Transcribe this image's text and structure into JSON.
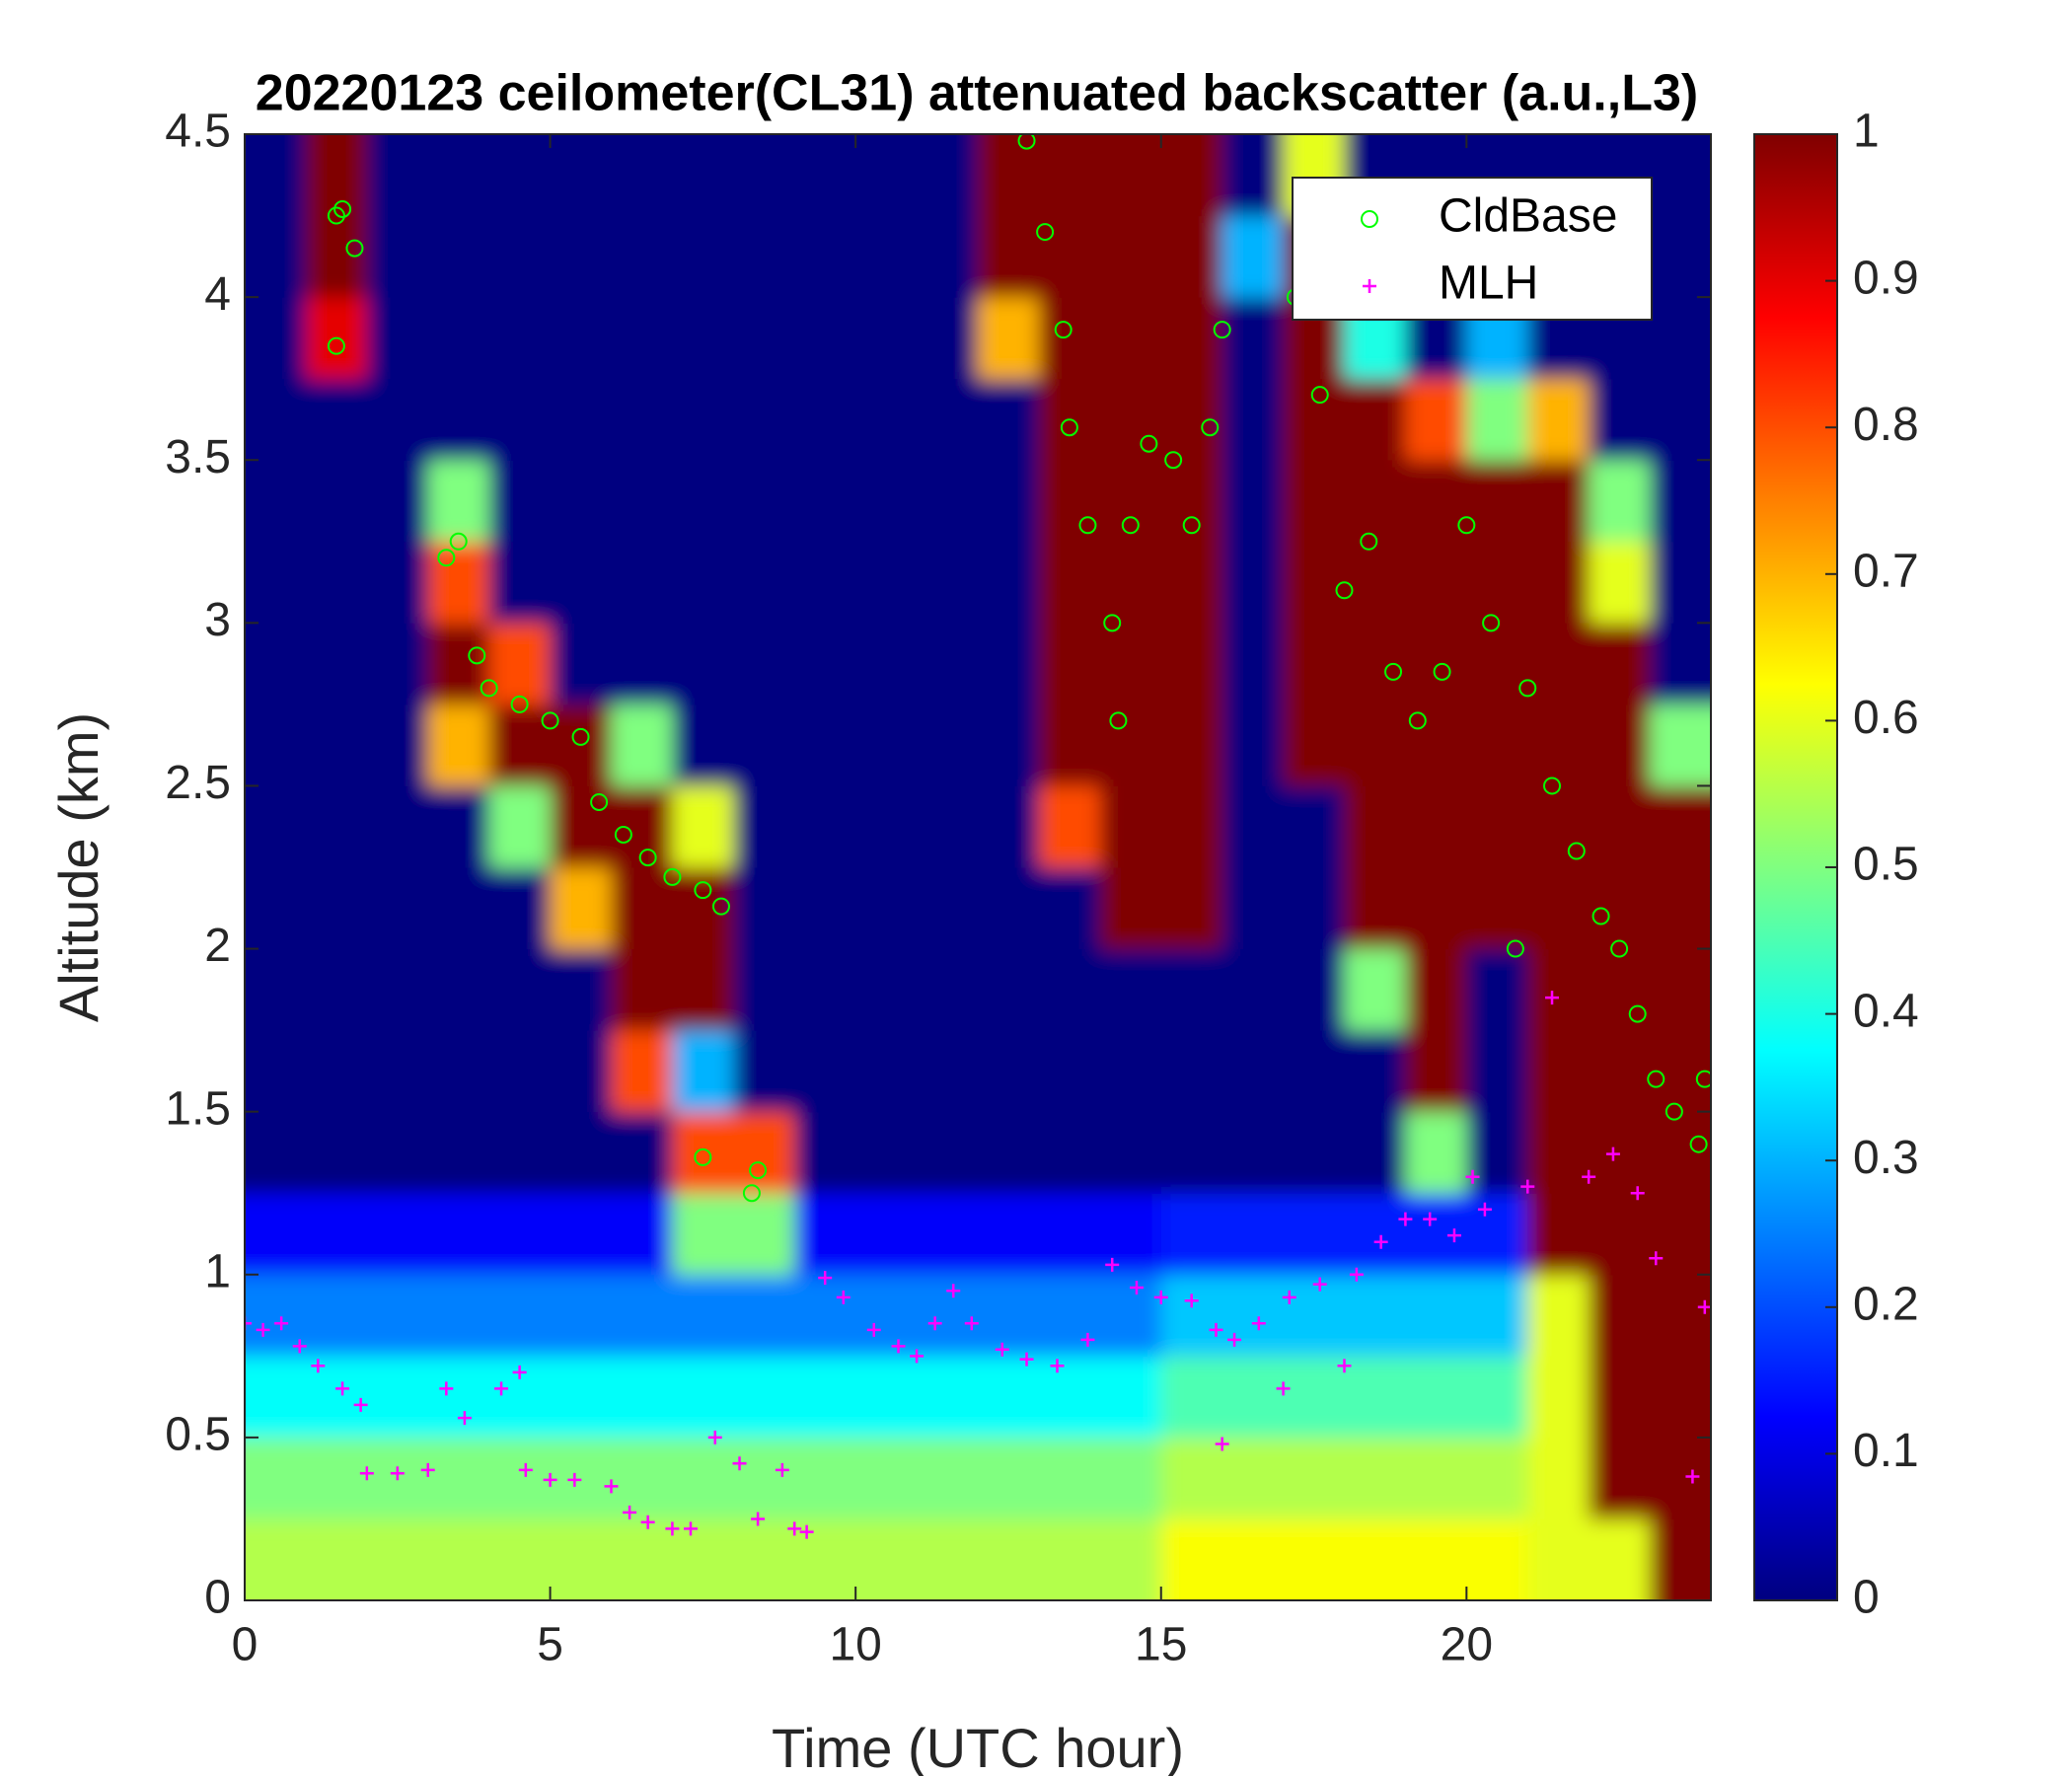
{
  "chart_data": {
    "type": "heatmap",
    "title": "20220123 ceilometer(CL31) attenuated backscatter (a.u.,L3)",
    "x_label": "Time (UTC hour)",
    "y_label": "Altitude (km)",
    "xlim": [
      0,
      24
    ],
    "ylim": [
      0,
      4.5
    ],
    "xticks": [
      0,
      5,
      10,
      15,
      20
    ],
    "yticks": [
      0,
      0.5,
      1,
      1.5,
      2,
      2.5,
      3,
      3.5,
      4,
      4.5
    ],
    "clim": [
      0,
      1
    ],
    "cticks": [
      0,
      0.1,
      0.2,
      0.3,
      0.4,
      0.5,
      0.6,
      0.7,
      0.8,
      0.9,
      1
    ],
    "colormap": "jet",
    "legend_position": "upper right",
    "x": [
      0.5,
      1.5,
      2.5,
      3.5,
      4.5,
      5.5,
      6.5,
      7.5,
      8.5,
      9.5,
      10.5,
      11.5,
      12.5,
      13.5,
      14.5,
      15.5,
      16.5,
      17.5,
      18.5,
      19.5,
      20.5,
      21.5,
      22.5,
      23.5
    ],
    "y": [
      0.125,
      0.375,
      0.625,
      0.875,
      1.125,
      1.375,
      1.625,
      1.875,
      2.125,
      2.375,
      2.625,
      2.875,
      3.125,
      3.375,
      3.625,
      3.875,
      4.125,
      4.375
    ],
    "z": [
      [
        0.55,
        0.55,
        0.55,
        0.55,
        0.55,
        0.55,
        0.55,
        0.55,
        0.55,
        0.55,
        0.55,
        0.55,
        0.55,
        0.55,
        0.55,
        0.62,
        0.62,
        0.62,
        0.62,
        0.62,
        0.62,
        0.6,
        0.6,
        1
      ],
      [
        0.5,
        0.5,
        0.5,
        0.5,
        0.5,
        0.5,
        0.5,
        0.5,
        0.5,
        0.5,
        0.5,
        0.5,
        0.5,
        0.5,
        0.5,
        0.55,
        0.55,
        0.55,
        0.55,
        0.55,
        0.55,
        0.6,
        1,
        1
      ],
      [
        0.38,
        0.38,
        0.38,
        0.38,
        0.38,
        0.38,
        0.38,
        0.38,
        0.38,
        0.38,
        0.38,
        0.38,
        0.38,
        0.38,
        0.38,
        0.45,
        0.45,
        0.45,
        0.45,
        0.45,
        0.45,
        0.6,
        1,
        1
      ],
      [
        0.25,
        0.25,
        0.25,
        0.25,
        0.25,
        0.25,
        0.25,
        0.25,
        0.25,
        0.25,
        0.25,
        0.25,
        0.25,
        0.25,
        0.25,
        0.32,
        0.32,
        0.32,
        0.32,
        0.32,
        0.32,
        0.6,
        1,
        1
      ],
      [
        0.12,
        0.12,
        0.12,
        0.12,
        0.12,
        0.12,
        0.12,
        0.5,
        0.5,
        0.12,
        0.12,
        0.12,
        0.12,
        0.12,
        0.12,
        0.15,
        0.15,
        0.15,
        0.15,
        0.15,
        0.15,
        1,
        1,
        1
      ],
      [
        0,
        0,
        0,
        0,
        0,
        0,
        0,
        0.8,
        0.8,
        0,
        0,
        0,
        0,
        0,
        0,
        0,
        0,
        0,
        0,
        0.5,
        0,
        1,
        1,
        1
      ],
      [
        0,
        0,
        0,
        0,
        0,
        0,
        0.8,
        0.3,
        0,
        0,
        0,
        0,
        0,
        0,
        0,
        0,
        0,
        0,
        0,
        1,
        0,
        1,
        1,
        1
      ],
      [
        0,
        0,
        0,
        0,
        0,
        0,
        1,
        1,
        0,
        0,
        0,
        0,
        0,
        0,
        0,
        0,
        0,
        0,
        0.5,
        1,
        0,
        1,
        1,
        1
      ],
      [
        0,
        0,
        0,
        0,
        0,
        0.7,
        1,
        1,
        0,
        0,
        0,
        0,
        0,
        0,
        1,
        1,
        0,
        0,
        1,
        1,
        1,
        1,
        1,
        1
      ],
      [
        0,
        0,
        0,
        0,
        0.5,
        1,
        1,
        0.6,
        0,
        0,
        0,
        0,
        0,
        0.8,
        1,
        1,
        0,
        0,
        1,
        1,
        1,
        1,
        1,
        1
      ],
      [
        0,
        0,
        0,
        0.7,
        1,
        1,
        0.5,
        0,
        0,
        0,
        0,
        0,
        0,
        1,
        1,
        1,
        0,
        1,
        1,
        1,
        1,
        1,
        1,
        0.5
      ],
      [
        0,
        0,
        0,
        1,
        0.8,
        0,
        0,
        0,
        0,
        0,
        0,
        0,
        0,
        1,
        1,
        1,
        0,
        1,
        1,
        1,
        1,
        1,
        1,
        0
      ],
      [
        0,
        0,
        0,
        0.8,
        0,
        0,
        0,
        0,
        0,
        0,
        0,
        0,
        0,
        1,
        1,
        1,
        0,
        1,
        1,
        1,
        1,
        1,
        0.6,
        0
      ],
      [
        0,
        0,
        0,
        0.5,
        0,
        0,
        0,
        0,
        0,
        0,
        0,
        0,
        0,
        1,
        1,
        1,
        0,
        1,
        1,
        1,
        1,
        1,
        0.5,
        0
      ],
      [
        0,
        0,
        0,
        0,
        0,
        0,
        0,
        0,
        0,
        0,
        0,
        0,
        0,
        1,
        1,
        1,
        0,
        1,
        1,
        0.8,
        0.5,
        0.7,
        0,
        0
      ],
      [
        0,
        0.9,
        0,
        0,
        0,
        0,
        0,
        0,
        0,
        0,
        0,
        0,
        0.7,
        1,
        1,
        1,
        0,
        1,
        0.4,
        0,
        0.3,
        0,
        0,
        0
      ],
      [
        0,
        1,
        0,
        0,
        0,
        0,
        0,
        0,
        0,
        0,
        0,
        0,
        1,
        1,
        1,
        1,
        0.3,
        1,
        0,
        0,
        0,
        0,
        0,
        0
      ],
      [
        0,
        1,
        0,
        0,
        0,
        0,
        0,
        0,
        0,
        0,
        0,
        0,
        1,
        1,
        1,
        1,
        0,
        0.6,
        0,
        0,
        0,
        0,
        0,
        0
      ]
    ],
    "series": [
      {
        "name": "CldBase",
        "color": "#00ff00",
        "marker": "o",
        "x": [
          1.5,
          1.6,
          1.8,
          1.5,
          3.3,
          3.5,
          3.8,
          4.0,
          4.5,
          5.0,
          5.5,
          5.8,
          6.2,
          6.6,
          7.0,
          7.5,
          7.8,
          7.5,
          8.3,
          8.4,
          12.8,
          13.1,
          13.4,
          13.5,
          13.8,
          14.2,
          14.3,
          14.5,
          14.8,
          15.2,
          15.5,
          15.8,
          16.0,
          17.2,
          17.6,
          18.0,
          18.4,
          18.8,
          19.2,
          19.6,
          20.0,
          20.4,
          20.8,
          21.0,
          21.4,
          21.8,
          22.2,
          22.5,
          22.8,
          23.1,
          23.4,
          23.8,
          23.9
        ],
        "values": [
          4.25,
          4.27,
          4.15,
          3.85,
          3.2,
          3.25,
          2.9,
          2.8,
          2.75,
          2.7,
          2.65,
          2.45,
          2.35,
          2.28,
          2.22,
          2.18,
          2.13,
          1.36,
          1.25,
          1.32,
          4.48,
          4.2,
          3.9,
          3.6,
          3.3,
          3.0,
          2.7,
          3.3,
          3.55,
          3.5,
          3.3,
          3.6,
          3.9,
          4.0,
          3.7,
          3.1,
          3.25,
          2.85,
          2.7,
          2.85,
          3.3,
          3.0,
          2.0,
          2.8,
          2.5,
          2.3,
          2.1,
          2.0,
          1.8,
          1.6,
          1.5,
          1.4,
          1.6
        ]
      },
      {
        "name": "MLH",
        "color": "#ff00ff",
        "marker": "+",
        "x": [
          0,
          0.3,
          0.6,
          0.9,
          1.2,
          1.6,
          1.9,
          2.0,
          2.5,
          3.0,
          3.3,
          3.6,
          4.2,
          4.5,
          4.6,
          5.0,
          5.4,
          6.0,
          6.3,
          6.6,
          7.0,
          7.3,
          7.7,
          8.1,
          8.4,
          8.8,
          9.0,
          9.2,
          9.5,
          9.8,
          10.3,
          10.7,
          11.0,
          11.3,
          11.6,
          11.9,
          12.4,
          12.8,
          13.3,
          13.8,
          14.2,
          14.6,
          15.0,
          15.5,
          15.9,
          16.2,
          16.6,
          17.1,
          17.6,
          18.0,
          18.2,
          18.6,
          19.0,
          19.4,
          19.8,
          20.1,
          20.3,
          21.0,
          21.4,
          22.0,
          22.4,
          22.8,
          23.1,
          23.7,
          23.9,
          16.0,
          17.0
        ],
        "values": [
          0.85,
          0.83,
          0.85,
          0.78,
          0.72,
          0.65,
          0.6,
          0.39,
          0.39,
          0.4,
          0.65,
          0.56,
          0.65,
          0.7,
          0.4,
          0.37,
          0.37,
          0.35,
          0.27,
          0.24,
          0.22,
          0.22,
          0.5,
          0.42,
          0.25,
          0.4,
          0.22,
          0.21,
          0.99,
          0.93,
          0.83,
          0.78,
          0.75,
          0.85,
          0.95,
          0.85,
          0.77,
          0.74,
          0.72,
          0.8,
          1.03,
          0.96,
          0.93,
          0.92,
          0.83,
          0.8,
          0.85,
          0.93,
          0.97,
          0.72,
          1.0,
          1.1,
          1.17,
          1.17,
          1.12,
          1.3,
          1.2,
          1.27,
          1.85,
          1.3,
          1.37,
          1.25,
          1.05,
          0.38,
          0.9,
          0.48,
          0.65
        ]
      }
    ]
  }
}
